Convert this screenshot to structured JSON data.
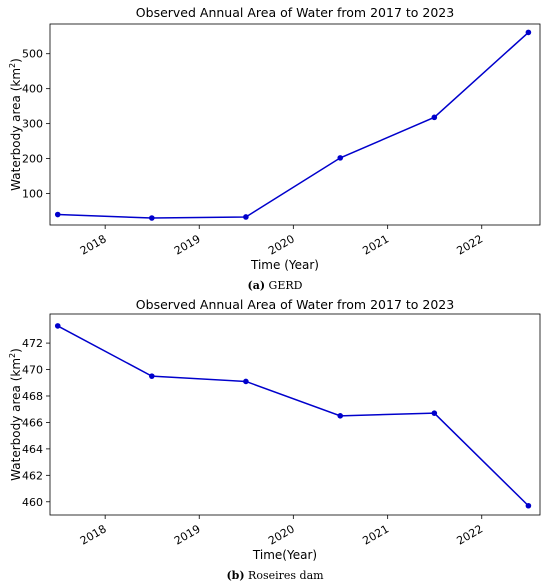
{
  "chart_data": [
    {
      "type": "line",
      "title": "Observed Annual Area of Water from 2017 to 2023",
      "xlabel": "Time (Year)",
      "ylabel_main": "Waterbody area (km",
      "ylabel_sup": "2",
      "ylabel_close": ")",
      "x": [
        "2017-07",
        "2018-07",
        "2019-07",
        "2020-07",
        "2021-07",
        "2022-07"
      ],
      "series": [
        {
          "values": [
            40,
            30,
            33,
            202,
            318,
            561
          ]
        }
      ],
      "ylim": [
        10,
        585
      ],
      "xlim": [
        "2017-06-01",
        "2022-08-15"
      ],
      "xticks": [
        "2018",
        "2019",
        "2020",
        "2021",
        "2022"
      ],
      "yticks": [
        100,
        200,
        300,
        400,
        500
      ],
      "grid": false,
      "color": "#0000cc"
    },
    {
      "type": "line",
      "title": "Observed Annual Area of Water from 2017 to 2023",
      "xlabel": "Time(Year)",
      "ylabel_main": "Waterbody area (km",
      "ylabel_sup": "2",
      "ylabel_close": ")",
      "x": [
        "2017-07",
        "2018-07",
        "2019-07",
        "2020-07",
        "2021-07",
        "2022-07"
      ],
      "series": [
        {
          "values": [
            473.3,
            469.5,
            469.1,
            466.5,
            466.7,
            459.7
          ]
        }
      ],
      "ylim": [
        459.0,
        474.2
      ],
      "xlim": [
        "2017-06-01",
        "2022-08-15"
      ],
      "xticks": [
        "2018",
        "2019",
        "2020",
        "2021",
        "2022"
      ],
      "yticks": [
        460,
        462,
        464,
        466,
        468,
        470,
        472
      ],
      "grid": false,
      "color": "#0000cc"
    }
  ],
  "captions": [
    {
      "label": "(a)",
      "text": " GERD"
    },
    {
      "label": "(b)",
      "text": " Roseires dam"
    }
  ]
}
